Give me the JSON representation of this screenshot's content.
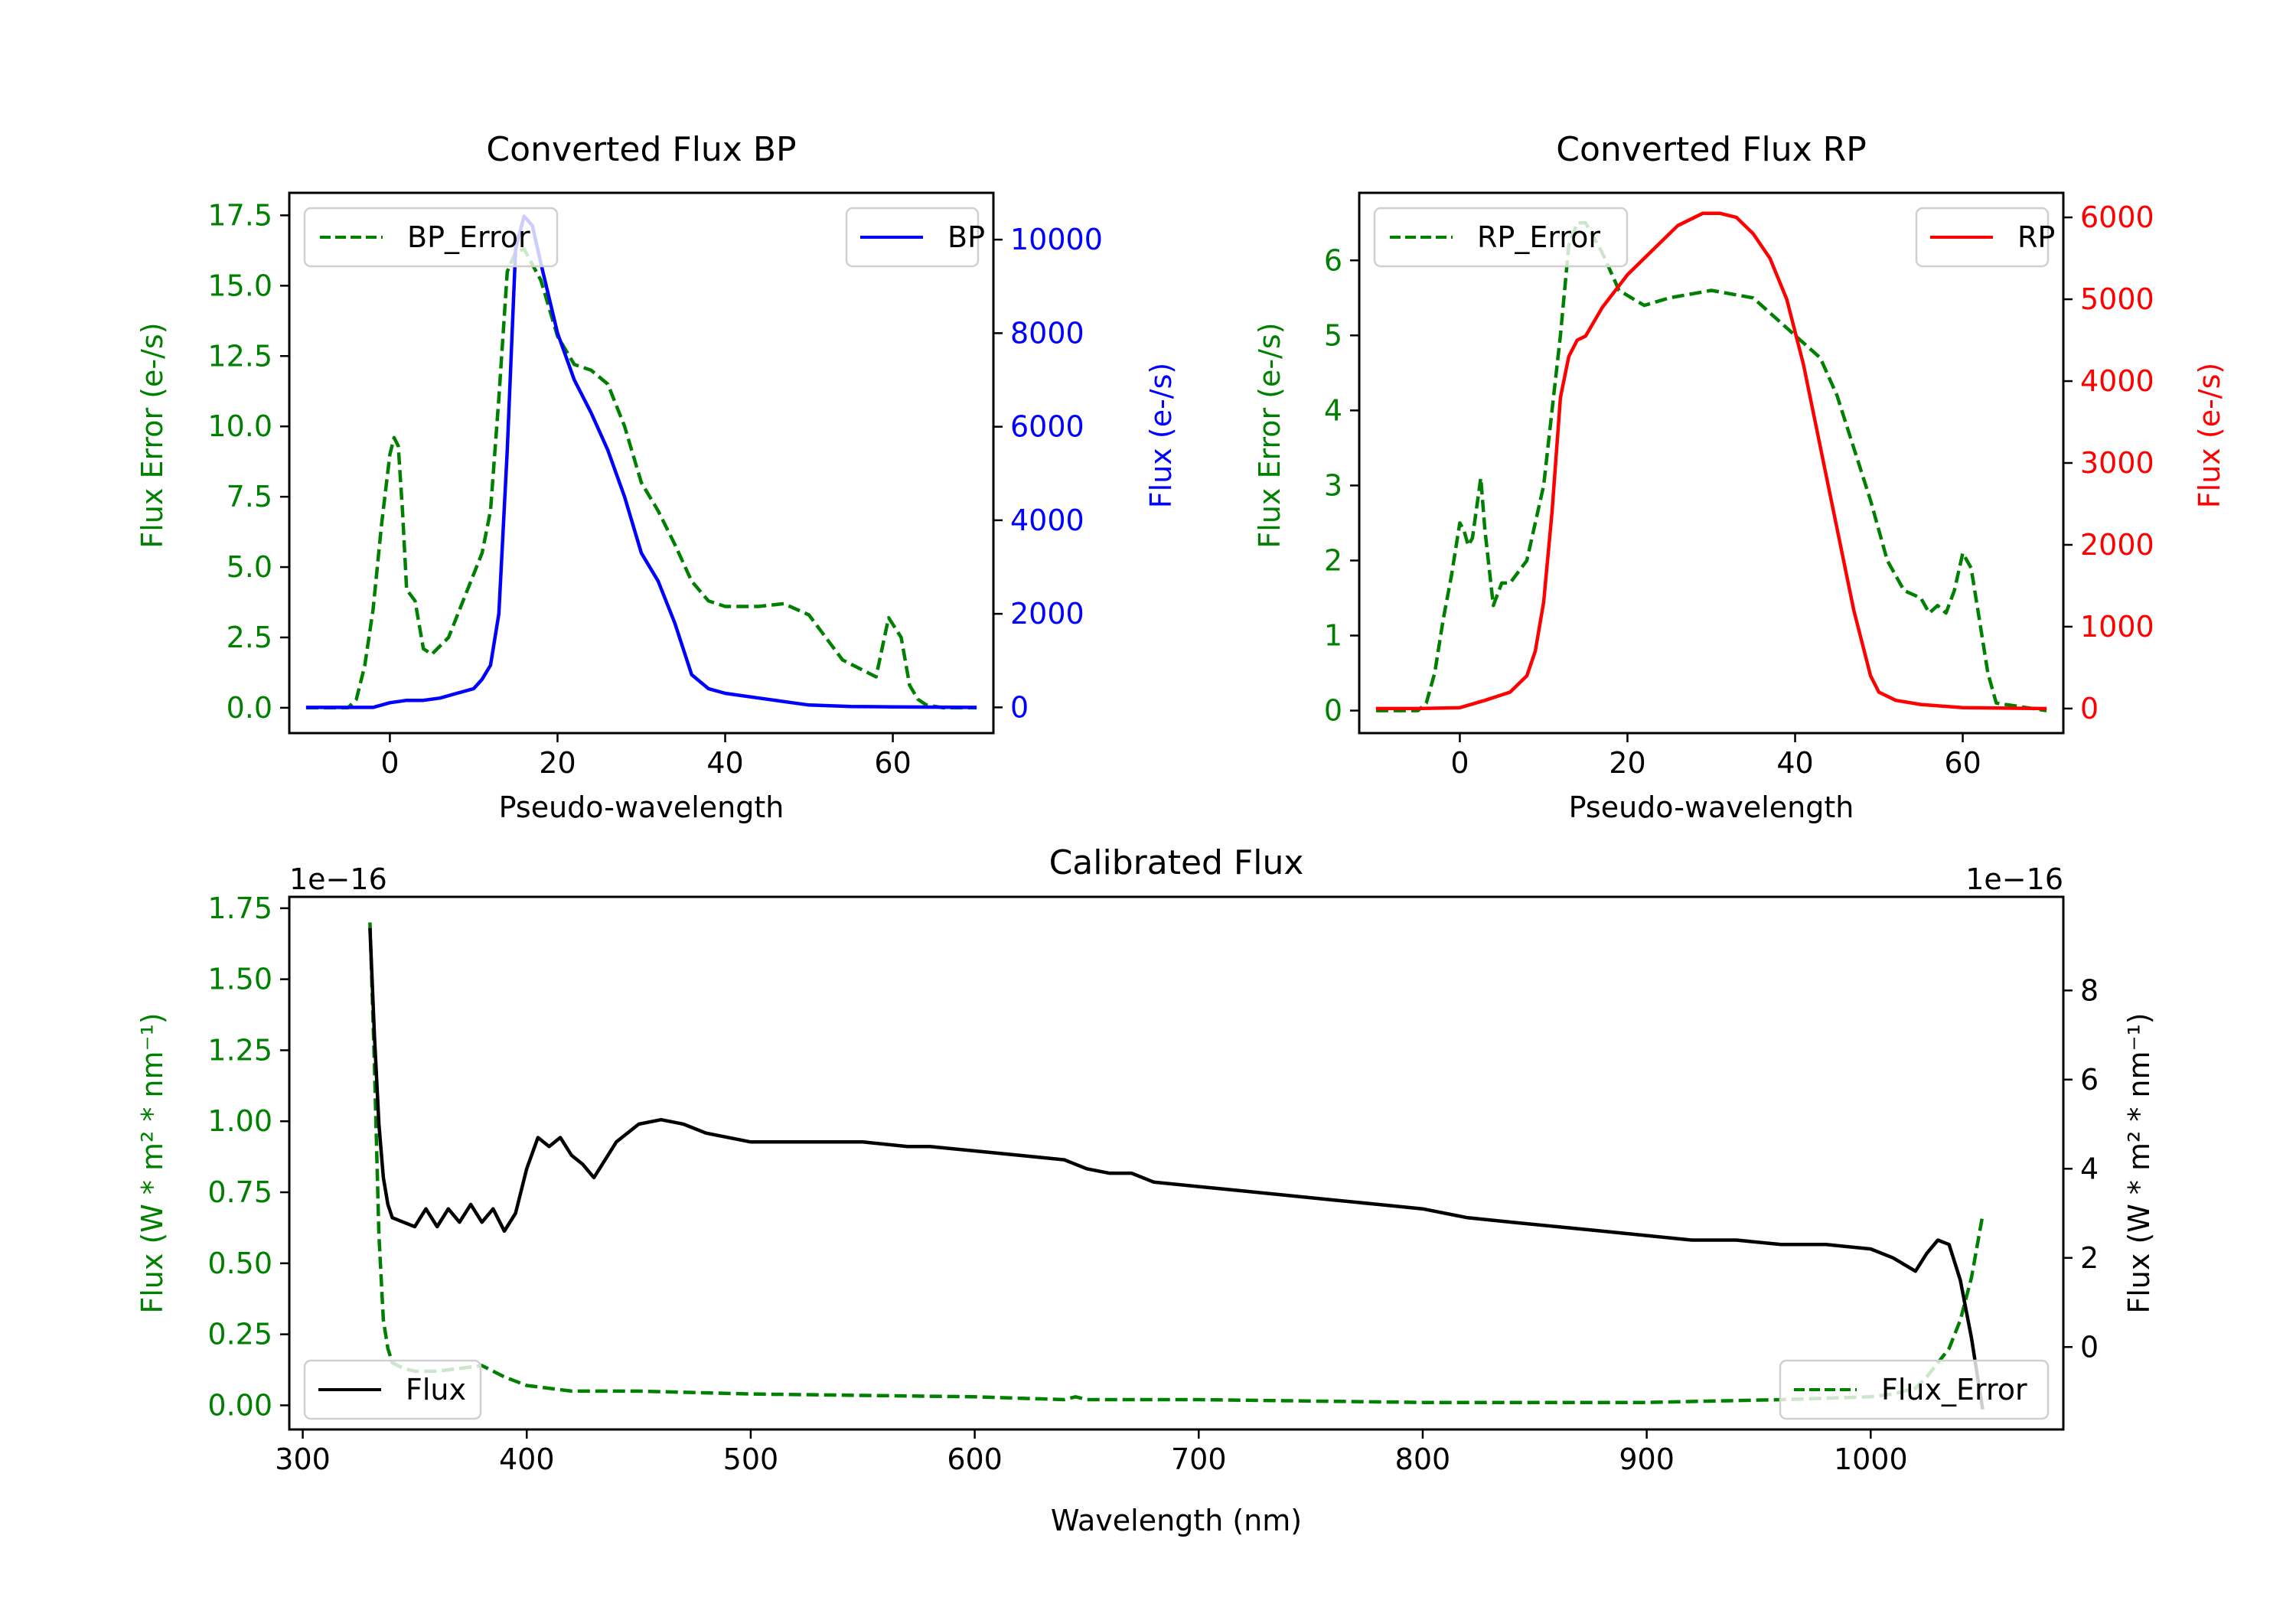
{
  "colors": {
    "green": "#008000",
    "blue": "#0000ff",
    "red": "#ff0000",
    "black": "#000000"
  },
  "chart_data": [
    {
      "type": "line",
      "title": "Converted Flux BP",
      "xlabel": "Pseudo-wavelength",
      "xlim": [
        -12,
        72
      ],
      "xticks": [
        0,
        20,
        40,
        60
      ],
      "left_axis": {
        "label": "Flux Error (e-/s)",
        "color": "green",
        "ylim": [
          -0.9,
          18.3
        ],
        "ticks": [
          0.0,
          2.5,
          5.0,
          7.5,
          10.0,
          12.5,
          15.0,
          17.5
        ],
        "tick_labels": [
          "0.0",
          "2.5",
          "5.0",
          "7.5",
          "10.0",
          "12.5",
          "15.0",
          "17.5"
        ]
      },
      "right_axis": {
        "label": "Flux (e-/s)",
        "color": "blue",
        "ylim": [
          -550,
          11000
        ],
        "ticks": [
          0,
          2000,
          4000,
          6000,
          8000,
          10000
        ],
        "tick_labels": [
          "0",
          "2000",
          "4000",
          "6000",
          "8000",
          "10000"
        ]
      },
      "series": [
        {
          "name": "BP_Error",
          "axis": "left",
          "style": "dashed",
          "color": "green",
          "x": [
            -10,
            -5,
            -4,
            -3,
            -2,
            -1,
            0,
            0.5,
            1,
            1.5,
            2,
            3,
            4,
            5,
            7,
            9,
            11,
            12,
            13,
            14,
            15,
            16,
            18,
            20,
            22,
            24,
            26,
            28,
            30,
            32,
            34,
            36,
            38,
            40,
            44,
            47,
            50,
            54,
            58,
            59.5,
            61,
            62,
            63,
            64,
            66,
            70
          ],
          "values": [
            0,
            0,
            0.3,
            1.5,
            3.5,
            6.5,
            9,
            9.6,
            9.3,
            7,
            4.2,
            3.8,
            2.1,
            1.9,
            2.5,
            4,
            5.5,
            7,
            11,
            15.5,
            16.2,
            16.3,
            15.2,
            13.2,
            12.2,
            12,
            11.5,
            10,
            8,
            7,
            5.8,
            4.5,
            3.8,
            3.6,
            3.6,
            3.7,
            3.3,
            1.7,
            1.1,
            3.2,
            2.5,
            0.8,
            0.3,
            0.1,
            0,
            0
          ]
        },
        {
          "name": "BP",
          "axis": "right",
          "style": "solid",
          "color": "blue",
          "x": [
            -10,
            -2,
            0,
            2,
            4,
            6,
            8,
            10,
            11,
            12,
            13,
            14,
            15,
            16,
            17,
            18,
            20,
            22,
            24,
            26,
            28,
            30,
            32,
            34,
            36,
            38,
            40,
            44,
            48,
            50,
            55,
            60,
            70
          ],
          "values": [
            0,
            0,
            100,
            150,
            150,
            200,
            300,
            400,
            600,
            900,
            2000,
            5500,
            9800,
            10500,
            10300,
            9500,
            8000,
            7000,
            6300,
            5500,
            4500,
            3300,
            2700,
            1800,
            700,
            400,
            300,
            200,
            100,
            50,
            20,
            10,
            0
          ]
        }
      ],
      "legends": [
        {
          "position": "upper-left",
          "label": "BP_Error"
        },
        {
          "position": "upper-right",
          "label": "BP"
        }
      ]
    },
    {
      "type": "line",
      "title": "Converted Flux RP",
      "xlabel": "Pseudo-wavelength",
      "xlim": [
        -12,
        72
      ],
      "xticks": [
        0,
        20,
        40,
        60
      ],
      "left_axis": {
        "label": "Flux Error (e-/s)",
        "color": "green",
        "ylim": [
          -0.3,
          6.9
        ],
        "ticks": [
          0,
          1,
          2,
          3,
          4,
          5,
          6
        ],
        "tick_labels": [
          "0",
          "1",
          "2",
          "3",
          "4",
          "5",
          "6"
        ]
      },
      "right_axis": {
        "label": "Flux (e-/s)",
        "color": "red",
        "ylim": [
          -300,
          6300
        ],
        "ticks": [
          0,
          1000,
          2000,
          3000,
          4000,
          5000,
          6000
        ],
        "tick_labels": [
          "0",
          "1000",
          "2000",
          "3000",
          "4000",
          "5000",
          "6000"
        ]
      },
      "series": [
        {
          "name": "RP_Error",
          "axis": "left",
          "style": "dashed",
          "color": "green",
          "x": [
            -10,
            -5,
            -4,
            -3,
            -2,
            -1,
            0,
            0.5,
            1,
            1.5,
            2.5,
            3,
            4,
            5,
            6,
            8,
            10,
            11,
            12,
            13,
            14,
            15,
            17,
            19,
            22,
            25,
            30,
            35,
            38,
            40,
            43,
            45,
            47,
            49,
            51,
            53,
            55,
            56,
            57,
            58,
            59,
            60,
            61,
            62,
            63,
            64,
            70
          ],
          "values": [
            0,
            0,
            0.1,
            0.5,
            1.2,
            1.8,
            2.5,
            2.4,
            2.2,
            2.3,
            3.1,
            2.4,
            1.4,
            1.7,
            1.7,
            2,
            3,
            4,
            5,
            6.2,
            6.5,
            6.5,
            6.1,
            5.6,
            5.4,
            5.5,
            5.6,
            5.5,
            5.2,
            5.0,
            4.7,
            4.2,
            3.5,
            2.8,
            2.0,
            1.6,
            1.5,
            1.3,
            1.4,
            1.3,
            1.6,
            2.1,
            1.9,
            1.2,
            0.5,
            0.1,
            0
          ]
        },
        {
          "name": "RP",
          "axis": "right",
          "style": "solid",
          "color": "red",
          "x": [
            -10,
            -5,
            0,
            3,
            6,
            8,
            9,
            10,
            11,
            12,
            13,
            14,
            15,
            17,
            20,
            23,
            26,
            29,
            31,
            33,
            35,
            37,
            39,
            41,
            43,
            45,
            47,
            49,
            50,
            52,
            55,
            60,
            70
          ],
          "values": [
            0,
            0,
            10,
            100,
            200,
            400,
            700,
            1300,
            2400,
            3800,
            4300,
            4500,
            4550,
            4900,
            5300,
            5600,
            5900,
            6050,
            6050,
            6000,
            5800,
            5500,
            5000,
            4200,
            3200,
            2200,
            1200,
            400,
            200,
            100,
            50,
            10,
            0
          ]
        }
      ],
      "legends": [
        {
          "position": "upper-left",
          "label": "RP_Error"
        },
        {
          "position": "upper-right",
          "label": "RP"
        }
      ]
    },
    {
      "type": "line",
      "title": "Calibrated Flux",
      "xlabel": "Wavelength (nm)",
      "xlim": [
        294,
        1086
      ],
      "xticks": [
        300,
        400,
        500,
        600,
        700,
        800,
        900,
        1000
      ],
      "left_axis": {
        "label": "Flux (W * m² * nm⁻¹)",
        "color": "green",
        "offset_text": "1e−16",
        "ylim": [
          -0.085,
          1.79
        ],
        "ticks": [
          0.0,
          0.25,
          0.5,
          0.75,
          1.0,
          1.25,
          1.5,
          1.75
        ],
        "tick_labels": [
          "0.00",
          "0.25",
          "0.50",
          "0.75",
          "1.00",
          "1.25",
          "1.50",
          "1.75"
        ]
      },
      "right_axis": {
        "label": "Flux (W * m² * nm⁻¹)",
        "color": "black",
        "offset_text": "1e−16",
        "ylim": [
          -1.85,
          10.1
        ],
        "ticks": [
          0,
          2,
          4,
          6,
          8
        ],
        "tick_labels": [
          "0",
          "2",
          "4",
          "6",
          "8"
        ]
      },
      "series": [
        {
          "name": "Flux_Error",
          "axis": "left",
          "style": "dashed",
          "color": "green",
          "x": [
            330,
            332,
            334,
            336,
            338,
            340,
            345,
            350,
            360,
            370,
            380,
            390,
            400,
            410,
            420,
            430,
            450,
            500,
            550,
            600,
            640,
            645,
            650,
            700,
            800,
            900,
            960,
            1000,
            1010,
            1020,
            1025,
            1030,
            1035,
            1040,
            1045,
            1050
          ],
          "values": [
            1.7,
            1.2,
            0.6,
            0.3,
            0.2,
            0.15,
            0.13,
            0.12,
            0.12,
            0.13,
            0.14,
            0.1,
            0.07,
            0.06,
            0.05,
            0.05,
            0.05,
            0.04,
            0.035,
            0.03,
            0.02,
            0.03,
            0.02,
            0.02,
            0.01,
            0.01,
            0.02,
            0.03,
            0.04,
            0.06,
            0.1,
            0.15,
            0.2,
            0.3,
            0.45,
            0.67
          ]
        },
        {
          "name": "Flux",
          "axis": "right",
          "style": "solid",
          "color": "black",
          "x": [
            330,
            332,
            334,
            336,
            338,
            340,
            345,
            350,
            355,
            360,
            365,
            370,
            375,
            380,
            385,
            390,
            395,
            400,
            405,
            410,
            415,
            420,
            425,
            430,
            435,
            440,
            450,
            460,
            470,
            480,
            500,
            520,
            550,
            570,
            580,
            600,
            620,
            640,
            650,
            660,
            670,
            680,
            700,
            720,
            740,
            760,
            780,
            800,
            820,
            840,
            860,
            880,
            900,
            920,
            940,
            960,
            980,
            1000,
            1010,
            1020,
            1025,
            1030,
            1035,
            1040,
            1045,
            1050
          ],
          "values": [
            9.4,
            7,
            5,
            3.8,
            3.2,
            2.9,
            2.8,
            2.7,
            3.1,
            2.7,
            3.1,
            2.8,
            3.2,
            2.8,
            3.1,
            2.6,
            3.0,
            4.0,
            4.7,
            4.5,
            4.7,
            4.3,
            4.1,
            3.8,
            4.2,
            4.6,
            5.0,
            5.1,
            5.0,
            4.8,
            4.6,
            4.6,
            4.6,
            4.5,
            4.5,
            4.4,
            4.3,
            4.2,
            4.0,
            3.9,
            3.9,
            3.7,
            3.6,
            3.5,
            3.4,
            3.3,
            3.2,
            3.1,
            2.9,
            2.8,
            2.7,
            2.6,
            2.5,
            2.4,
            2.4,
            2.3,
            2.3,
            2.2,
            2.0,
            1.7,
            2.1,
            2.4,
            2.3,
            1.5,
            0.2,
            -1.4
          ]
        }
      ],
      "legends": [
        {
          "position": "lower-left",
          "label": "Flux"
        },
        {
          "position": "lower-right",
          "label": "Flux_Error"
        }
      ]
    }
  ]
}
